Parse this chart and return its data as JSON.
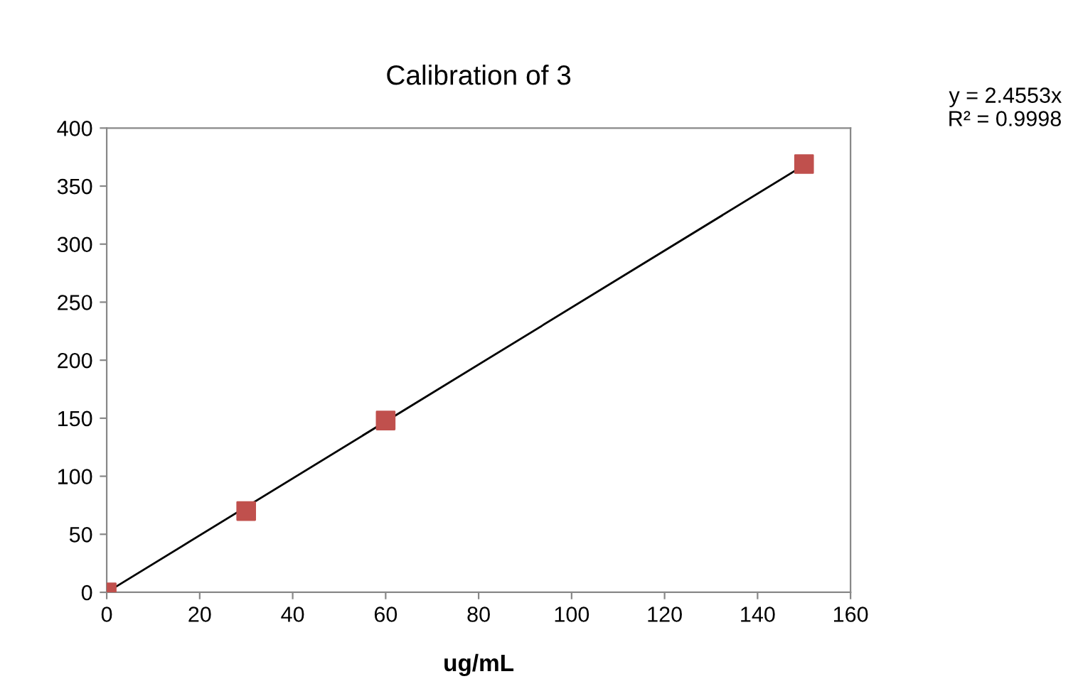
{
  "chart_data": {
    "type": "scatter",
    "title": "Calibration of 3",
    "xlabel": "ug/mL",
    "series": [
      {
        "color": "#c0504d",
        "marker": "square",
        "x": [
          0,
          30,
          60,
          150
        ],
        "values": [
          0,
          70,
          148,
          369
        ]
      },
      {
        "type": "line",
        "color": "#000000",
        "marker": "none",
        "x": [
          0,
          150
        ],
        "values": [
          0,
          368
        ]
      }
    ],
    "xlim": [
      0,
      160
    ],
    "xticks": [
      0,
      20,
      40,
      60,
      80,
      100,
      120,
      140,
      160
    ],
    "ylim": [
      0,
      400
    ],
    "yticks": [
      0,
      50,
      100,
      150,
      200,
      250,
      300,
      350,
      400
    ],
    "grid": false,
    "legend": false,
    "annotations": [
      "y = 2.4553x",
      "R² = 0.9998"
    ]
  }
}
